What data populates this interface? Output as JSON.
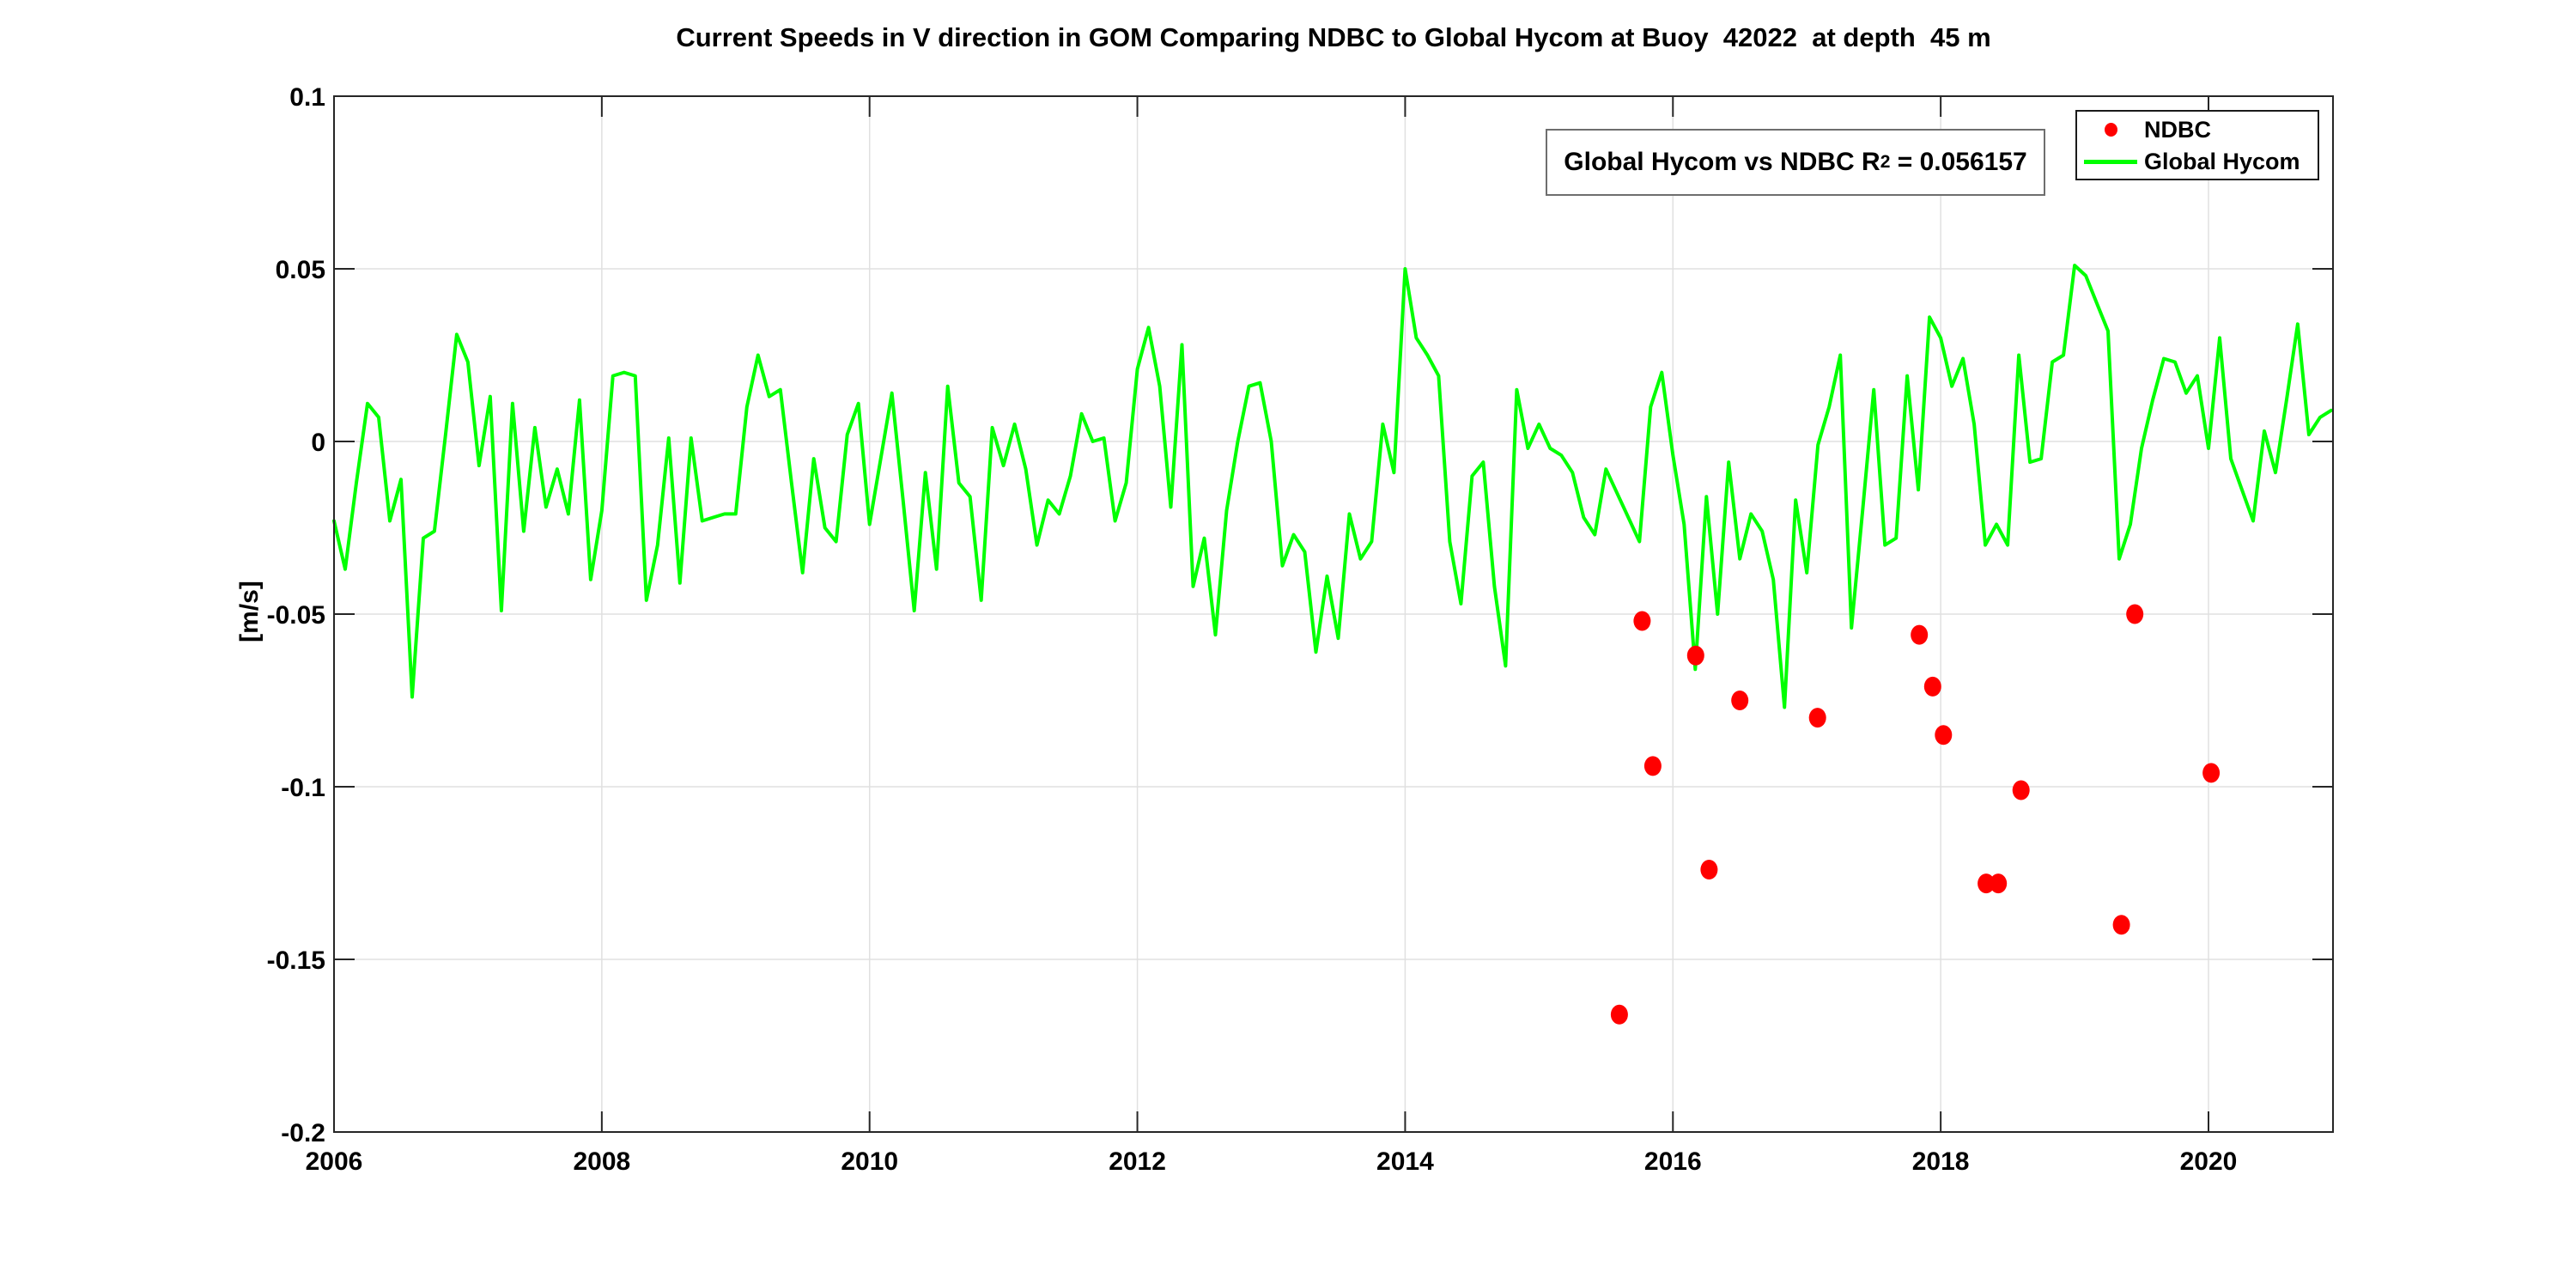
{
  "figure": {
    "background": "#ffffff"
  },
  "annotation": {
    "prefix": "Global Hycom vs NDBC R",
    "superscript": "2",
    "suffix": " = 0.056157"
  },
  "legend": {
    "items": [
      {
        "label": "NDBC",
        "marker": "dot",
        "color": "#ff0000"
      },
      {
        "label": "Global Hycom",
        "marker": "line",
        "color": "#00ff00"
      }
    ]
  },
  "chart_data": {
    "type": "line",
    "title": "Current Speeds in V direction in GOM Comparing NDBC to Global Hycom at Buoy  42022  at depth  45 m",
    "xlabel": "",
    "ylabel": "[m/s]",
    "xlim": [
      2006,
      2020.93
    ],
    "ylim": [
      -0.2,
      0.1
    ],
    "grid": true,
    "grid_color": "#e0e0e0",
    "axis_color": "#262626",
    "legend_position": "top-right",
    "x_ticks": [
      2006,
      2008,
      2010,
      2012,
      2014,
      2016,
      2018,
      2020
    ],
    "x_tick_labels": [
      "2006",
      "2008",
      "2010",
      "2012",
      "2014",
      "2016",
      "2018",
      "2020"
    ],
    "y_ticks": [
      0.1,
      0.05,
      0,
      -0.05,
      -0.1,
      -0.15,
      -0.2
    ],
    "y_tick_labels": [
      "0.1",
      "0.05",
      "0",
      "-0.05",
      "-0.1",
      "-0.15",
      "-0.2"
    ],
    "series": [
      {
        "name": "Global Hycom",
        "type": "line",
        "color": "#00ff00",
        "line_width": 4,
        "x_start": 2006.0,
        "x_step_years": 0.0833333,
        "values": [
          -0.023,
          -0.037,
          -0.012,
          0.011,
          0.007,
          -0.023,
          -0.011,
          -0.074,
          -0.028,
          -0.026,
          0.002,
          0.031,
          0.023,
          -0.007,
          0.013,
          -0.049,
          0.011,
          -0.026,
          0.004,
          -0.019,
          -0.008,
          -0.021,
          0.012,
          -0.04,
          -0.02,
          0.019,
          0.02,
          0.019,
          -0.046,
          -0.03,
          0.001,
          -0.041,
          0.001,
          -0.023,
          -0.022,
          -0.021,
          -0.021,
          0.01,
          0.025,
          0.013,
          0.015,
          -0.012,
          -0.038,
          -0.005,
          -0.025,
          -0.029,
          0.002,
          0.011,
          -0.024,
          -0.005,
          0.014,
          -0.017,
          -0.049,
          -0.009,
          -0.037,
          0.016,
          -0.012,
          -0.016,
          -0.046,
          0.004,
          -0.007,
          0.005,
          -0.008,
          -0.03,
          -0.017,
          -0.021,
          -0.01,
          0.008,
          0.0,
          0.001,
          -0.023,
          -0.012,
          0.021,
          0.033,
          0.016,
          -0.019,
          0.028,
          -0.042,
          -0.028,
          -0.056,
          -0.02,
          0.0,
          0.016,
          0.017,
          0.0,
          -0.036,
          -0.027,
          -0.032,
          -0.061,
          -0.039,
          -0.057,
          -0.021,
          -0.034,
          -0.029,
          0.005,
          -0.009,
          0.05,
          0.03,
          0.025,
          0.019,
          -0.029,
          -0.047,
          -0.01,
          -0.006,
          -0.042,
          -0.065,
          0.015,
          -0.002,
          0.005,
          -0.002,
          -0.004,
          -0.009,
          -0.022,
          -0.027,
          -0.008,
          -0.015,
          -0.022,
          -0.029,
          0.01,
          0.02,
          -0.004,
          -0.024,
          -0.066,
          -0.016,
          -0.05,
          -0.006,
          -0.034,
          -0.021,
          -0.026,
          -0.04,
          -0.077,
          -0.017,
          -0.038,
          -0.001,
          0.01,
          0.025,
          -0.054,
          -0.02,
          0.015,
          -0.03,
          -0.028,
          0.019,
          -0.014,
          0.036,
          0.03,
          0.016,
          0.024,
          0.005,
          -0.03,
          -0.024,
          -0.03,
          0.025,
          -0.006,
          -0.005,
          0.023,
          0.025,
          0.051,
          0.048,
          0.04,
          0.032,
          -0.034,
          -0.024,
          -0.002,
          0.012,
          0.024,
          0.023,
          0.014,
          0.019,
          -0.002,
          0.03,
          -0.005,
          -0.014,
          -0.023,
          0.003,
          -0.009,
          0.012,
          0.034,
          0.002,
          0.007,
          0.009
        ]
      },
      {
        "name": "NDBC",
        "type": "scatter",
        "color": "#ff0000",
        "marker": "dot",
        "points": [
          [
            2015.6,
            -0.166
          ],
          [
            2015.77,
            -0.052
          ],
          [
            2015.85,
            -0.094
          ],
          [
            2016.17,
            -0.062
          ],
          [
            2016.27,
            -0.124
          ],
          [
            2016.5,
            -0.075
          ],
          [
            2017.08,
            -0.08
          ],
          [
            2017.84,
            -0.056
          ],
          [
            2017.94,
            -0.071
          ],
          [
            2018.02,
            -0.085
          ],
          [
            2018.34,
            -0.128
          ],
          [
            2018.43,
            -0.128
          ],
          [
            2018.6,
            -0.101
          ],
          [
            2019.35,
            -0.14
          ],
          [
            2019.45,
            -0.05
          ],
          [
            2020.02,
            -0.096
          ]
        ]
      }
    ]
  }
}
